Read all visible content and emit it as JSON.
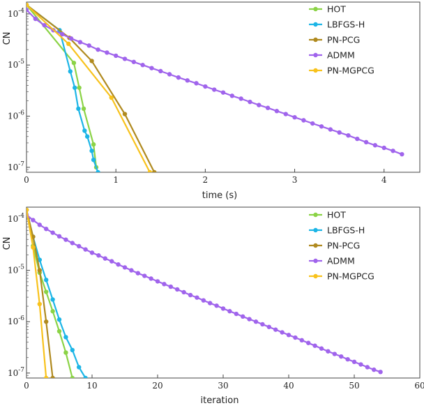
{
  "chart_data": [
    {
      "type": "line",
      "xlabel": "time (s)",
      "ylabel": "CN",
      "xscale": "linear",
      "yscale": "log",
      "xlim": [
        0,
        4.4
      ],
      "ylim": [
        8e-08,
        0.00017
      ],
      "xticks": [
        0,
        1,
        2,
        3,
        4
      ],
      "xtick_labels": [
        "0",
        "1",
        "2",
        "3",
        "4"
      ],
      "yticks": [
        1e-07,
        1e-06,
        1e-05,
        0.0001
      ],
      "ytick_labels": [
        "10^-7",
        "10^-6",
        "10^-5",
        "10^-4"
      ],
      "legend_position": "top-right",
      "grid": false,
      "series": [
        {
          "name": "HOT",
          "color": "#8bd346",
          "x": [
            0,
            0.53,
            0.59,
            0.64,
            0.75,
            0.78
          ],
          "y": [
            0.00015,
            1.1e-05,
            3.6e-06,
            1.4e-06,
            2.8e-07,
            1e-07
          ]
        },
        {
          "name": "LBFGS-H",
          "color": "#1cb5e6",
          "x": [
            0,
            0.37,
            0.49,
            0.54,
            0.58,
            0.65,
            0.68,
            0.73,
            0.75,
            0.8
          ],
          "y": [
            0.00015,
            4.8e-05,
            7.5e-06,
            3.6e-06,
            1.4e-06,
            5.2e-07,
            4e-07,
            2.1e-07,
            1.4e-07,
            8e-08
          ]
        },
        {
          "name": "PN-PCG",
          "color": "#b08a1f",
          "x": [
            0,
            0.48,
            0.73,
            1.1,
            1.43
          ],
          "y": [
            0.00015,
            3.4e-05,
            1.2e-05,
            1.1e-06,
            8e-08
          ]
        },
        {
          "name": "ADMM",
          "color": "#a064ec",
          "x": [
            0,
            0.1,
            0.2,
            0.3,
            0.4,
            0.5,
            0.6,
            0.7,
            0.8,
            0.9,
            1.0,
            1.1,
            1.2,
            1.3,
            1.4,
            1.5,
            1.6,
            1.7,
            1.8,
            1.9,
            2.0,
            2.1,
            2.2,
            2.3,
            2.4,
            2.5,
            2.6,
            2.7,
            2.8,
            2.9,
            3.0,
            3.1,
            3.2,
            3.3,
            3.4,
            3.5,
            3.6,
            3.7,
            3.8,
            3.9,
            4.0,
            4.1,
            4.2
          ],
          "y": [
            0.00012,
            8e-05,
            6e-05,
            4.8e-05,
            4e-05,
            3.3e-05,
            2.8e-05,
            2.4e-05,
            2e-05,
            1.75e-05,
            1.52e-05,
            1.32e-05,
            1.15e-05,
            1e-05,
            8.7e-06,
            7.6e-06,
            6.6e-06,
            5.7e-06,
            5e-06,
            4.4e-06,
            3.8e-06,
            3.3e-06,
            2.9e-06,
            2.5e-06,
            2.2e-06,
            1.9e-06,
            1.65e-06,
            1.45e-06,
            1.26e-06,
            1.1e-06,
            9.5e-07,
            8.3e-07,
            7.2e-07,
            6.3e-07,
            5.5e-07,
            4.8e-07,
            4.2e-07,
            3.6e-07,
            3.1e-07,
            2.7e-07,
            2.4e-07,
            2.1e-07,
            1.8e-07
          ]
        },
        {
          "name": "PN-MGPCG",
          "color": "#f8c21c",
          "x": [
            0,
            0.47,
            0.95,
            1.38
          ],
          "y": [
            0.00015,
            2.6e-05,
            2.3e-06,
            8e-08
          ]
        }
      ]
    },
    {
      "type": "line",
      "xlabel": "iteration",
      "ylabel": "CN",
      "xscale": "linear",
      "yscale": "log",
      "xlim": [
        0,
        60
      ],
      "ylim": [
        8e-08,
        0.00017
      ],
      "xticks": [
        0,
        10,
        20,
        30,
        40,
        50,
        60
      ],
      "xtick_labels": [
        "0",
        "10",
        "20",
        "30",
        "40",
        "50",
        "60"
      ],
      "yticks": [
        1e-07,
        1e-06,
        1e-05,
        0.0001
      ],
      "ytick_labels": [
        "10^-7",
        "10^-6",
        "10^-5",
        "10^-4"
      ],
      "legend_position": "top-right",
      "grid": false,
      "series": [
        {
          "name": "HOT",
          "color": "#8bd346",
          "x": [
            0,
            1,
            2,
            3,
            4,
            5,
            6,
            7
          ],
          "y": [
            0.00015,
            3e-05,
            9e-06,
            3.8e-06,
            1.6e-06,
            6.5e-07,
            2.5e-07,
            8e-08
          ]
        },
        {
          "name": "LBFGS-H",
          "color": "#1cb5e6",
          "x": [
            0,
            1,
            2,
            3,
            4,
            5,
            6,
            7,
            8,
            9
          ],
          "y": [
            0.00015,
            4.5e-05,
            1.6e-05,
            6.5e-06,
            2.7e-06,
            1.1e-06,
            5e-07,
            2.8e-07,
            1.3e-07,
            8e-08
          ]
        },
        {
          "name": "PN-PCG",
          "color": "#b08a1f",
          "x": [
            0,
            1,
            2,
            3,
            4
          ],
          "y": [
            0.00015,
            4.5e-05,
            1e-05,
            1e-06,
            8e-08
          ]
        },
        {
          "name": "ADMM",
          "color": "#a064ec",
          "x": [
            0,
            1,
            2,
            3,
            4,
            5,
            6,
            7,
            8,
            9,
            10,
            11,
            12,
            13,
            14,
            15,
            16,
            17,
            18,
            19,
            20,
            21,
            22,
            23,
            24,
            25,
            26,
            27,
            28,
            29,
            30,
            31,
            32,
            33,
            34,
            35,
            36,
            37,
            38,
            39,
            40,
            41,
            42,
            43,
            44,
            45,
            46,
            47,
            48,
            49,
            50,
            51,
            52,
            53,
            54
          ],
          "y": [
            0.00012,
            9.5e-05,
            7.7e-05,
            6.4e-05,
            5.4e-05,
            4.6e-05,
            3.95e-05,
            3.4e-05,
            2.95e-05,
            2.55e-05,
            2.2e-05,
            1.95e-05,
            1.7e-05,
            1.5e-05,
            1.3e-05,
            1.14e-05,
            1e-05,
            8.8e-06,
            7.8e-06,
            6.9e-06,
            6.1e-06,
            5.4e-06,
            4.8e-06,
            4.25e-06,
            3.75e-06,
            3.3e-06,
            2.95e-06,
            2.6e-06,
            2.3e-06,
            2.05e-06,
            1.8e-06,
            1.6e-06,
            1.42e-06,
            1.26e-06,
            1.12e-06,
            1e-06,
            8.9e-07,
            7.9e-07,
            7e-07,
            6.2e-07,
            5.5e-07,
            4.9e-07,
            4.35e-07,
            3.85e-07,
            3.4e-07,
            3e-07,
            2.65e-07,
            2.35e-07,
            2.1e-07,
            1.85e-07,
            1.65e-07,
            1.47e-07,
            1.3e-07,
            1.16e-07,
            1.05e-07
          ]
        },
        {
          "name": "PN-MGPCG",
          "color": "#f8c21c",
          "x": [
            0,
            1,
            2,
            3
          ],
          "y": [
            0.00015,
            2.8e-05,
            2.2e-06,
            8e-08
          ]
        }
      ]
    }
  ]
}
